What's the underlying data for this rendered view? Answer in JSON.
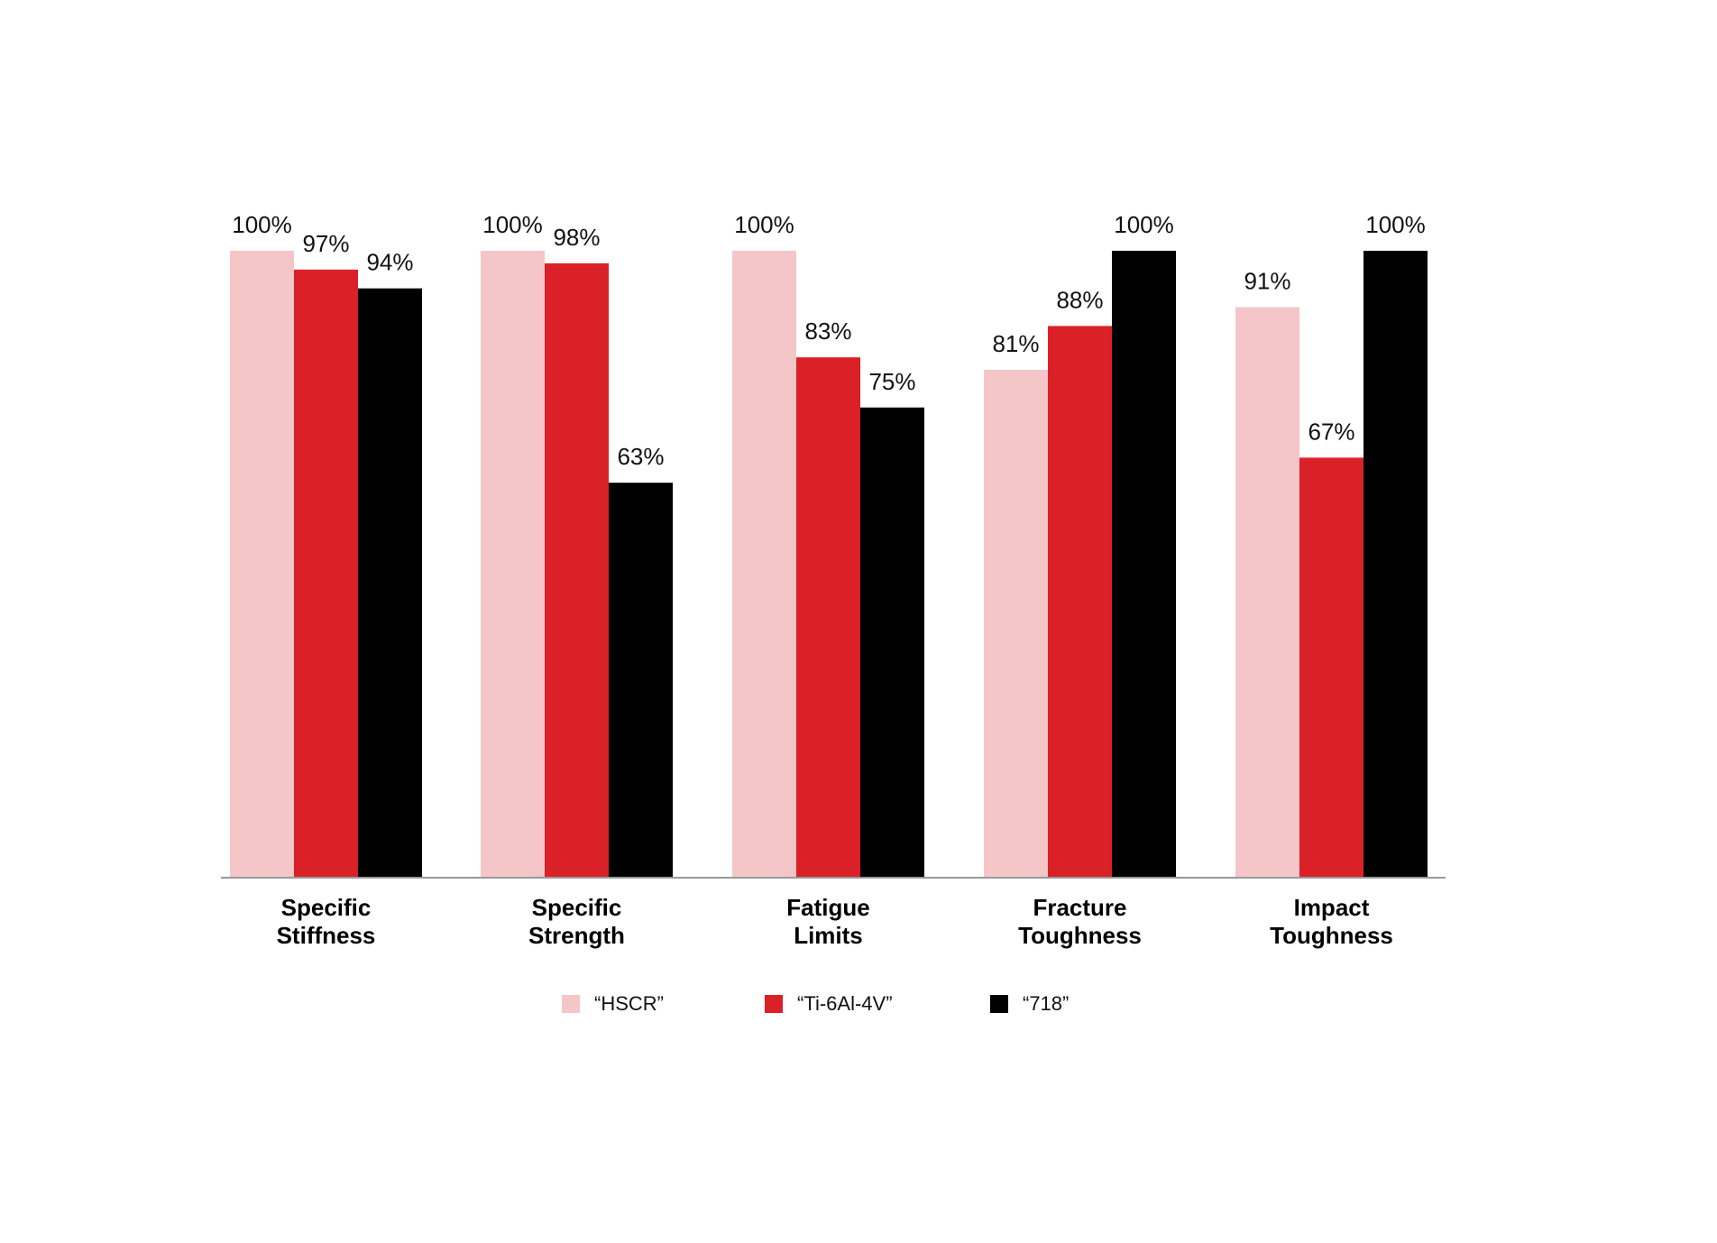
{
  "chart_data": {
    "type": "bar",
    "categories": [
      [
        "Specific",
        "Stiffness"
      ],
      [
        "Specific",
        "Strength"
      ],
      [
        "Fatigue",
        "Limits"
      ],
      [
        "Fracture",
        "Toughness"
      ],
      [
        "Impact",
        "Toughness"
      ]
    ],
    "series": [
      {
        "name": "“HSCR”",
        "color": "#f4c6c8",
        "values": [
          100,
          100,
          100,
          81,
          91
        ],
        "labels": [
          "100%",
          "100%",
          "100%",
          "81%",
          "91%"
        ]
      },
      {
        "name": "“Ti-6Al-4V”",
        "color": "#da2128",
        "values": [
          97,
          98,
          83,
          88,
          67
        ],
        "labels": [
          "97%",
          "98%",
          "83%",
          "88%",
          "67%"
        ]
      },
      {
        "name": "“718”",
        "color": "#000000",
        "values": [
          94,
          63,
          75,
          100,
          100
        ],
        "labels": [
          "94%",
          "63%",
          "75%",
          "100%",
          "100%"
        ]
      }
    ],
    "ylim": [
      0,
      100
    ],
    "grid": false,
    "legend_position": "bottom"
  }
}
